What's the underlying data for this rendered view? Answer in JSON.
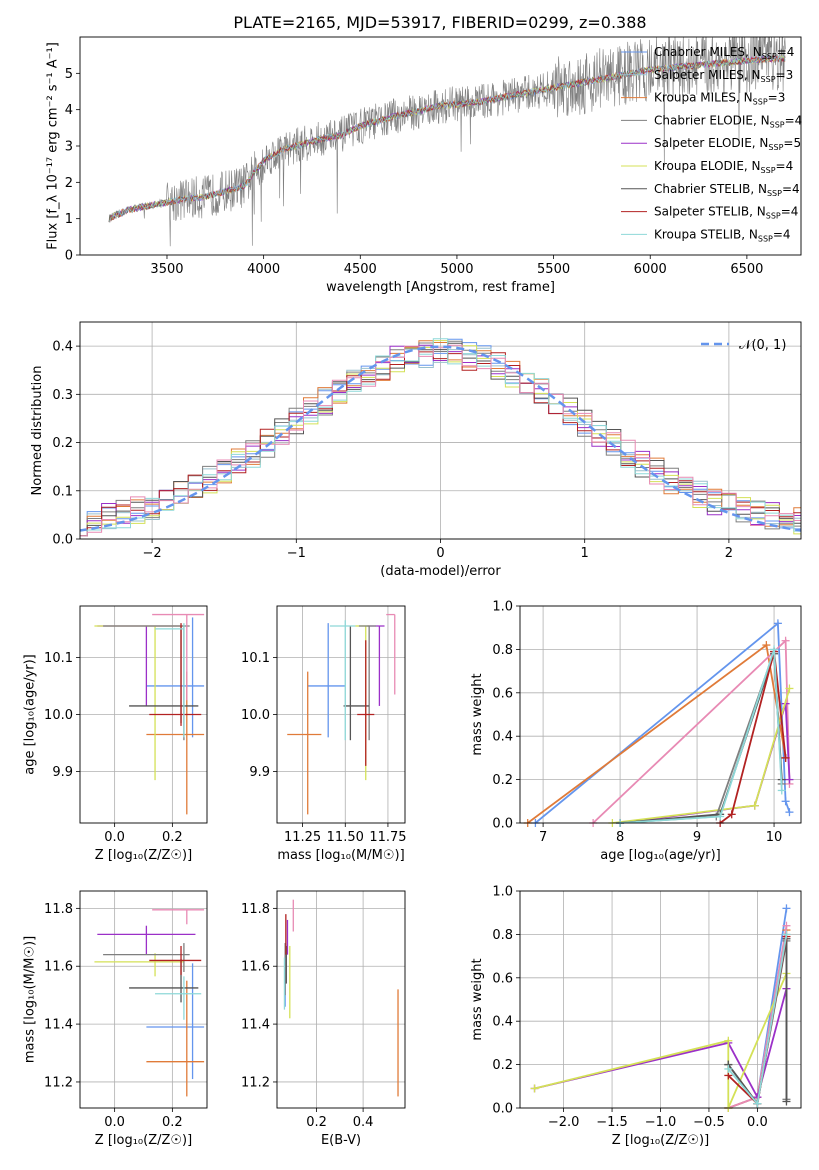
{
  "figure_title": "PLATE=2165, MJD=53917, FIBERID=0299, z=0.388",
  "palette": [
    "#6495ED",
    "#9AC0CD",
    "#E07B39",
    "#7F7F7F",
    "#9B30C8",
    "#D4E157",
    "#555555",
    "#B22222",
    "#8ED8D8",
    "#E88AB4"
  ],
  "chart_data": [
    {
      "id": "spectrum",
      "type": "line",
      "title": "PLATE=2165, MJD=53917, FIBERID=0299, z=0.388",
      "xlabel": "wavelength [Angstrom, rest frame]",
      "ylabel": "Flux [f_λ 10⁻¹⁷ erg cm⁻² s⁻¹ A⁻¹]",
      "xlim": [
        3050,
        6780
      ],
      "ylim": [
        0,
        6
      ],
      "xticks": [
        "3500",
        "4000",
        "4500",
        "5000",
        "5500",
        "6000",
        "6500"
      ],
      "yticks": [
        "0",
        "1",
        "2",
        "3",
        "4",
        "5"
      ],
      "grid": false,
      "legend_position": "top-right",
      "series": [
        {
          "name": "Chabrier MILES, N_SSP=4",
          "color": "#6495ED"
        },
        {
          "name": "Salpeter MILES, N_SSP=3",
          "color": "#9AC0CD"
        },
        {
          "name": "Kroupa MILES, N_SSP=3",
          "color": "#E07B39"
        },
        {
          "name": "Chabrier ELODIE, N_SSP=4",
          "color": "#7F7F7F"
        },
        {
          "name": "Salpeter ELODIE, N_SSP=5",
          "color": "#9B30C8"
        },
        {
          "name": "Kroupa ELODIE, N_SSP=4",
          "color": "#D4E157"
        },
        {
          "name": "Chabrier STELIB, N_SSP=4",
          "color": "#555555"
        },
        {
          "name": "Salpeter STELIB, N_SSP=4",
          "color": "#B22222"
        },
        {
          "name": "Kroupa STELIB, N_SSP=4",
          "color": "#8ED8D8"
        }
      ],
      "continuum": {
        "x": [
          3200,
          3300,
          3400,
          3500,
          3600,
          3700,
          3800,
          3900,
          4000,
          4100,
          4200,
          4300,
          4400,
          4500,
          4600,
          4700,
          4800,
          4900,
          5000,
          5100,
          5200,
          5300,
          5400,
          5500,
          5600,
          5700,
          5800,
          5900,
          6000,
          6100,
          6200,
          6300,
          6400,
          6500,
          6600
        ],
        "y": [
          1.0,
          1.25,
          1.35,
          1.45,
          1.55,
          1.6,
          1.75,
          1.9,
          2.6,
          2.9,
          3.05,
          3.2,
          3.3,
          3.55,
          3.7,
          3.85,
          3.95,
          4.1,
          4.15,
          4.2,
          4.3,
          4.4,
          4.5,
          4.6,
          4.7,
          4.8,
          4.9,
          5.0,
          5.1,
          5.15,
          5.2,
          5.25,
          5.3,
          5.35,
          5.4
        ]
      }
    },
    {
      "id": "residuals",
      "type": "line",
      "xlabel": "(data-model)/error",
      "ylabel": "Normed distribution",
      "xlim": [
        -2.5,
        2.5
      ],
      "ylim": [
        0,
        0.45
      ],
      "xticks": [
        "−2",
        "−1",
        "0",
        "1",
        "2"
      ],
      "yticks": [
        "0.0",
        "0.1",
        "0.2",
        "0.3",
        "0.4"
      ],
      "grid": true,
      "legend_position": "top-right",
      "legend_label": "𝒩(0, 1)",
      "bin_width": 0.1,
      "gaussian": {
        "mean": 0,
        "sigma": 1,
        "style": "dashed",
        "color": "#6495ED"
      }
    },
    {
      "id": "age-vs-Z",
      "type": "scatter",
      "xlabel": "Z [log₁₀(Z/Z☉)]",
      "ylabel": "age [log₁₀(age/yr)]",
      "xlim": [
        -0.12,
        0.32
      ],
      "ylim": [
        9.81,
        10.19
      ],
      "xticks": [
        "0.0",
        "0.2"
      ],
      "yticks": [
        "9.9",
        "10.0",
        "10.1"
      ],
      "grid": true,
      "errorbars": [
        {
          "color": "#6495ED",
          "x": 0.27,
          "y": 10.05,
          "xerr": [
            0.16,
            0.04
          ],
          "yerr": [
            0.09,
            0.12
          ]
        },
        {
          "color": "#E07B39",
          "x": 0.25,
          "y": 9.965,
          "xerr": [
            0.14,
            0.06
          ],
          "yerr": [
            0.14,
            0.11
          ]
        },
        {
          "color": "#9B30C8",
          "x": 0.11,
          "y": 10.155,
          "xerr": [
            0.17,
            0.13
          ],
          "yerr": [
            0.14,
            0.0
          ]
        },
        {
          "color": "#D4E157",
          "x": 0.14,
          "y": 10.155,
          "xerr": [
            0.21,
            0.1
          ],
          "yerr": [
            0.27,
            0.0
          ]
        },
        {
          "color": "#7F7F7F",
          "x": 0.24,
          "y": 10.155,
          "xerr": [
            0.28,
            0.02
          ],
          "yerr": [
            0.2,
            0.0
          ]
        },
        {
          "color": "#555555",
          "x": 0.23,
          "y": 10.015,
          "xerr": [
            0.18,
            0.06
          ],
          "yerr": [
            0.03,
            0.14
          ]
        },
        {
          "color": "#B22222",
          "x": 0.23,
          "y": 10.0,
          "xerr": [
            0.11,
            0.07
          ],
          "yerr": [
            0.02,
            0.16
          ]
        },
        {
          "color": "#8ED8D8",
          "x": 0.24,
          "y": 10.15,
          "xerr": [
            0.1,
            0.0
          ],
          "yerr": [
            0.19,
            0.01
          ]
        },
        {
          "color": "#E88AB4",
          "x": 0.25,
          "y": 10.175,
          "xerr": [
            0.12,
            0.06
          ],
          "yerr": [
            0.15,
            0.0
          ]
        }
      ]
    },
    {
      "id": "age-vs-mass",
      "type": "scatter",
      "xlabel": "mass [log₁₀(M/M☉)]",
      "ylabel": "",
      "xlim": [
        11.1,
        11.85
      ],
      "ylim": [
        9.81,
        10.19
      ],
      "xticks": [
        "11.25",
        "11.50",
        "11.75"
      ],
      "yticks": [
        "9.9",
        "10.0",
        "10.1"
      ],
      "grid": true,
      "errorbars": [
        {
          "color": "#6495ED",
          "x": 11.4,
          "y": 10.05,
          "xerr": [
            0.12,
            0.1
          ],
          "yerr": [
            0.09,
            0.11
          ]
        },
        {
          "color": "#E07B39",
          "x": 11.28,
          "y": 9.965,
          "xerr": [
            0.12,
            0.08
          ],
          "yerr": [
            0.14,
            0.11
          ]
        },
        {
          "color": "#9B30C8",
          "x": 11.7,
          "y": 10.155,
          "xerr": [
            0.07,
            0.03
          ],
          "yerr": [
            0.14,
            0.0
          ]
        },
        {
          "color": "#D4E157",
          "x": 11.62,
          "y": 10.155,
          "xerr": [
            0.06,
            0.02
          ],
          "yerr": [
            0.27,
            0.0
          ]
        },
        {
          "color": "#7F7F7F",
          "x": 11.64,
          "y": 10.155,
          "xerr": [
            0.06,
            0.04
          ],
          "yerr": [
            0.2,
            0.0
          ]
        },
        {
          "color": "#555555",
          "x": 11.53,
          "y": 10.015,
          "xerr": [
            0.04,
            0.11
          ],
          "yerr": [
            0.06,
            0.14
          ]
        },
        {
          "color": "#B22222",
          "x": 11.62,
          "y": 10.0,
          "xerr": [
            0.05,
            0.05
          ],
          "yerr": [
            0.09,
            0.13
          ]
        },
        {
          "color": "#8ED8D8",
          "x": 11.5,
          "y": 10.155,
          "xerr": [
            0.09,
            0.06
          ],
          "yerr": [
            0.2,
            0.01
          ]
        },
        {
          "color": "#E88AB4",
          "x": 11.79,
          "y": 10.175,
          "xerr": [
            0.05,
            0.0
          ],
          "yerr": [
            0.14,
            0.0
          ]
        }
      ]
    },
    {
      "id": "massweight-vs-age",
      "type": "line",
      "xlabel": "age [log₁₀(age/yr)]",
      "ylabel": "mass weight",
      "xlim": [
        6.7,
        10.35
      ],
      "ylim": [
        0,
        1
      ],
      "xticks": [
        "7",
        "8",
        "9",
        "10"
      ],
      "yticks": [
        "0.0",
        "0.2",
        "0.4",
        "0.6",
        "0.8",
        "1.0"
      ],
      "grid": true,
      "series": [
        {
          "color": "#6495ED",
          "x": [
            6.9,
            10.05,
            10.15,
            10.2
          ],
          "y": [
            0.0,
            0.92,
            0.1,
            0.05
          ]
        },
        {
          "color": "#E07B39",
          "x": [
            6.8,
            9.9,
            10.15
          ],
          "y": [
            0.0,
            0.82,
            0.3
          ]
        },
        {
          "color": "#E88AB4",
          "x": [
            7.65,
            10.15,
            10.2
          ],
          "y": [
            0.0,
            0.84,
            0.18
          ]
        },
        {
          "color": "#9B30C8",
          "x": [
            8.0,
            9.75,
            10.15,
            10.2
          ],
          "y": [
            0.0,
            0.08,
            0.55,
            0.2
          ]
        },
        {
          "color": "#D4E157",
          "x": [
            7.9,
            9.75,
            10.2
          ],
          "y": [
            0.0,
            0.08,
            0.62
          ]
        },
        {
          "color": "#7F7F7F",
          "x": [
            8.0,
            9.25,
            10.0,
            10.1
          ],
          "y": [
            0.0,
            0.03,
            0.79,
            0.18
          ]
        },
        {
          "color": "#555555",
          "x": [
            8.0,
            9.3,
            10.0,
            10.1
          ],
          "y": [
            0.0,
            0.04,
            0.78,
            0.2
          ]
        },
        {
          "color": "#B22222",
          "x": [
            9.3,
            9.45,
            10.0,
            10.15
          ],
          "y": [
            0.0,
            0.04,
            0.79,
            0.3
          ]
        },
        {
          "color": "#8ED8D8",
          "x": [
            8.0,
            9.3,
            10.0,
            10.1
          ],
          "y": [
            0.0,
            0.03,
            0.8,
            0.15
          ]
        }
      ]
    },
    {
      "id": "mass-vs-Z",
      "type": "scatter",
      "xlabel": "Z [log₁₀(Z/Z☉)]",
      "ylabel": "mass [log₁₀(M/M☉)]",
      "xlim": [
        -0.12,
        0.32
      ],
      "ylim": [
        11.11,
        11.86
      ],
      "xticks": [
        "0.0",
        "0.2"
      ],
      "yticks": [
        "11.2",
        "11.4",
        "11.6",
        "11.8"
      ],
      "grid": true,
      "errorbars": [
        {
          "color": "#6495ED",
          "x": 0.27,
          "y": 11.39,
          "xerr": [
            0.16,
            0.04
          ],
          "yerr": [
            0.18,
            0.22
          ]
        },
        {
          "color": "#E07B39",
          "x": 0.25,
          "y": 11.27,
          "xerr": [
            0.14,
            0.06
          ],
          "yerr": [
            0.12,
            0.28
          ]
        },
        {
          "color": "#9B30C8",
          "x": 0.11,
          "y": 11.71,
          "xerr": [
            0.17,
            0.17
          ],
          "yerr": [
            0.07,
            0.03
          ]
        },
        {
          "color": "#D4E157",
          "x": 0.14,
          "y": 11.615,
          "xerr": [
            0.21,
            0.1
          ],
          "yerr": [
            0.05,
            0.03
          ]
        },
        {
          "color": "#7F7F7F",
          "x": 0.24,
          "y": 11.64,
          "xerr": [
            0.28,
            0.02
          ],
          "yerr": [
            0.06,
            0.04
          ]
        },
        {
          "color": "#555555",
          "x": 0.23,
          "y": 11.525,
          "xerr": [
            0.18,
            0.06
          ],
          "yerr": [
            0.05,
            0.1
          ]
        },
        {
          "color": "#B22222",
          "x": 0.23,
          "y": 11.62,
          "xerr": [
            0.11,
            0.07
          ],
          "yerr": [
            0.05,
            0.05
          ]
        },
        {
          "color": "#8ED8D8",
          "x": 0.24,
          "y": 11.505,
          "xerr": [
            0.1,
            0.06
          ],
          "yerr": [
            0.09,
            0.06
          ]
        },
        {
          "color": "#E88AB4",
          "x": 0.25,
          "y": 11.795,
          "xerr": [
            0.12,
            0.06
          ],
          "yerr": [
            0.05,
            0.0
          ]
        }
      ]
    },
    {
      "id": "mass-vs-ebv",
      "type": "scatter",
      "xlabel": "E(B-V)",
      "ylabel": "",
      "xlim": [
        0.03,
        0.58
      ],
      "ylim": [
        11.11,
        11.86
      ],
      "xticks": [
        "0.2",
        "0.4"
      ],
      "yticks": [
        "11.2",
        "11.4",
        "11.6",
        "11.8"
      ],
      "grid": true,
      "errorbars": [
        {
          "color": "#6495ED",
          "x": 0.065,
          "y": 11.6,
          "xerr": [
            0,
            0
          ],
          "yerr": [
            0.14,
            0.08
          ]
        },
        {
          "color": "#E07B39",
          "x": 0.55,
          "y": 11.33,
          "xerr": [
            0,
            0
          ],
          "yerr": [
            0.18,
            0.19
          ]
        },
        {
          "color": "#9B30C8",
          "x": 0.075,
          "y": 11.7,
          "xerr": [
            0,
            0
          ],
          "yerr": [
            0.06,
            0.06
          ]
        },
        {
          "color": "#D4E157",
          "x": 0.085,
          "y": 11.55,
          "xerr": [
            0,
            0
          ],
          "yerr": [
            0.13,
            0.12
          ]
        },
        {
          "color": "#7F7F7F",
          "x": 0.065,
          "y": 11.6,
          "xerr": [
            0,
            0
          ],
          "yerr": [
            0.1,
            0.08
          ]
        },
        {
          "color": "#555555",
          "x": 0.07,
          "y": 11.62,
          "xerr": [
            0,
            0
          ],
          "yerr": [
            0.08,
            0.05
          ]
        },
        {
          "color": "#B22222",
          "x": 0.068,
          "y": 11.7,
          "xerr": [
            0,
            0
          ],
          "yerr": [
            0.06,
            0.08
          ]
        },
        {
          "color": "#8ED8D8",
          "x": 0.062,
          "y": 11.55,
          "xerr": [
            0,
            0
          ],
          "yerr": [
            0.1,
            0.08
          ]
        },
        {
          "color": "#E88AB4",
          "x": 0.1,
          "y": 11.77,
          "xerr": [
            0,
            0
          ],
          "yerr": [
            0.05,
            0.06
          ]
        }
      ]
    },
    {
      "id": "massweight-vs-Z",
      "type": "line",
      "xlabel": "Z [log₁₀(Z/Z☉)]",
      "ylabel": "mass weight",
      "xlim": [
        -2.45,
        0.45
      ],
      "ylim": [
        0,
        1
      ],
      "xticks": [
        "−2.0",
        "−1.5",
        "−1.0",
        "−0.5",
        "0.0"
      ],
      "yticks": [
        "0.0",
        "0.2",
        "0.4",
        "0.6",
        "0.8",
        "1.0"
      ],
      "grid": true,
      "series": [
        {
          "color": "#6495ED",
          "x": [
            -0.3,
            0.0,
            0.3
          ],
          "y": [
            0.0,
            0.05,
            0.92
          ]
        },
        {
          "color": "#E07B39",
          "x": [
            -0.3,
            0.0,
            0.3
          ],
          "y": [
            0.0,
            0.05,
            0.82
          ]
        },
        {
          "color": "#E88AB4",
          "x": [
            -0.3,
            0.0,
            0.3
          ],
          "y": [
            0.0,
            0.05,
            0.84
          ]
        },
        {
          "color": "#9B30C8",
          "x": [
            -2.3,
            -0.3,
            0.0,
            0.3
          ],
          "y": [
            0.09,
            0.3,
            0.05,
            0.55
          ]
        },
        {
          "color": "#D4E157",
          "x": [
            -2.3,
            -0.3,
            -0.3,
            0.3
          ],
          "y": [
            0.09,
            0.31,
            0.0,
            0.62
          ]
        },
        {
          "color": "#7F7F7F",
          "x": [
            -0.3,
            0.0,
            0.3,
            0.3
          ],
          "y": [
            0.2,
            0.02,
            0.77,
            0.04
          ]
        },
        {
          "color": "#555555",
          "x": [
            -0.3,
            0.0,
            0.3,
            0.3
          ],
          "y": [
            0.2,
            0.02,
            0.78,
            0.03
          ]
        },
        {
          "color": "#B22222",
          "x": [
            -0.3,
            0.0,
            0.3
          ],
          "y": [
            0.15,
            0.02,
            0.79
          ]
        },
        {
          "color": "#8ED8D8",
          "x": [
            -0.3,
            0.0,
            0.3
          ],
          "y": [
            0.18,
            0.02,
            0.8
          ]
        }
      ]
    }
  ]
}
